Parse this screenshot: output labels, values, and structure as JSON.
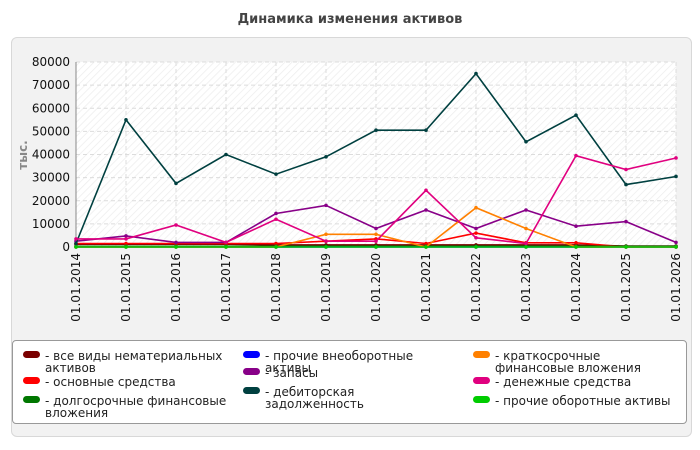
{
  "chart_data": {
    "type": "line",
    "title": "Динамика изменения активов",
    "ylabel": "тыс.",
    "xlabel": "",
    "categories": [
      "01.01.2014",
      "01.01.2015",
      "01.01.2016",
      "01.01.2017",
      "01.01.2018",
      "01.01.2019",
      "01.01.2020",
      "01.01.2021",
      "01.01.2022",
      "01.01.2023",
      "01.01.2024",
      "01.01.2025",
      "01.01.2026"
    ],
    "ylim": [
      0,
      80000
    ],
    "yticks": [
      0,
      10000,
      20000,
      30000,
      40000,
      50000,
      60000,
      70000,
      80000
    ],
    "grid": true,
    "legend_position": "bottom",
    "series": [
      {
        "name": "все виды нематериальных активов",
        "color": "#7a0000",
        "values": [
          1200,
          1200,
          1200,
          1200,
          900,
          900,
          900,
          900,
          900,
          900,
          900,
          400,
          400
        ]
      },
      {
        "name": "основные средства",
        "color": "#ff0000",
        "values": [
          1500,
          1500,
          1500,
          1500,
          1500,
          2500,
          3500,
          1500,
          6000,
          1800,
          1800,
          0,
          0
        ]
      },
      {
        "name": "долгосрочные финансовые вложения",
        "color": "#007700",
        "values": [
          300,
          300,
          300,
          300,
          300,
          300,
          300,
          300,
          300,
          300,
          300,
          300,
          300
        ]
      },
      {
        "name": "прочие внеоборотные активы",
        "color": "#0000ff",
        "values": [
          0,
          0,
          0,
          0,
          0,
          0,
          0,
          0,
          0,
          0,
          0,
          0,
          0
        ]
      },
      {
        "name": "запасы",
        "color": "#880088",
        "values": [
          2500,
          4800,
          2000,
          2000,
          14500,
          18000,
          8000,
          16000,
          8000,
          16000,
          9000,
          11000,
          2000
        ]
      },
      {
        "name": "дебиторская задолженность",
        "color": "#004040",
        "values": [
          1500,
          55000,
          27500,
          40000,
          31500,
          39000,
          50500,
          50500,
          75000,
          45500,
          57000,
          27000,
          30500
        ]
      },
      {
        "name": "краткосрочные финансовые вложения",
        "color": "#ff8000",
        "values": [
          0,
          0,
          0,
          0,
          0,
          5500,
          5500,
          0,
          17000,
          8000,
          0,
          0,
          0
        ]
      },
      {
        "name": "денежные средства",
        "color": "#e0007f",
        "values": [
          3500,
          3500,
          9500,
          2000,
          12000,
          2500,
          2500,
          24500,
          4000,
          1500,
          39500,
          33500,
          38500
        ]
      },
      {
        "name": "прочие оборотные активы",
        "color": "#00cc00",
        "values": [
          0,
          0,
          0,
          0,
          0,
          0,
          0,
          0,
          0,
          0,
          0,
          0,
          0
        ]
      }
    ]
  }
}
